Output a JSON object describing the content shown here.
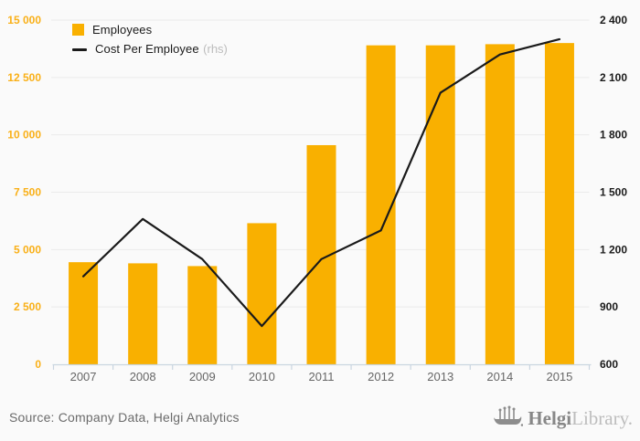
{
  "chart_data": {
    "type": "bar+line",
    "categories": [
      "2007",
      "2008",
      "2009",
      "2010",
      "2011",
      "2012",
      "2013",
      "2014",
      "2015"
    ],
    "series": [
      {
        "name": "Employees",
        "type": "bar",
        "axis": "left",
        "values": [
          4450,
          4400,
          4280,
          6150,
          9550,
          13900,
          13900,
          13950,
          14000
        ]
      },
      {
        "name": "Cost Per Employee",
        "type": "line",
        "axis": "right",
        "values": [
          1060,
          1360,
          1150,
          800,
          1150,
          1300,
          2020,
          2220,
          2300
        ]
      }
    ],
    "left_axis": {
      "min": 0,
      "max": 15000,
      "step": 2500,
      "tick_labels": [
        "0",
        "2 500",
        "5 000",
        "7 500",
        "10 000",
        "12 500",
        "15 000"
      ]
    },
    "right_axis": {
      "min": 600,
      "max": 2400,
      "step": 300,
      "tick_labels": [
        "600",
        "900",
        "1 200",
        "1 500",
        "1 800",
        "2 100",
        "2 400"
      ]
    },
    "title": "",
    "grid": "horizontal",
    "legend_position": "top-left",
    "colors": {
      "bar": "#f9b000",
      "line": "#1a1a1a",
      "left_tick_label": "#f9b018",
      "right_tick_label": "#1a1a1a",
      "x_tick_label": "#666666",
      "gridline": "#ebebeb",
      "axis_line": "#c9d5e0"
    }
  },
  "legend": {
    "employees_label": "Employees",
    "cost_label": "Cost Per Employee",
    "cost_suffix": "(rhs)"
  },
  "footer": {
    "source": "Source: Company Data, Helgi Analytics",
    "brand_primary": "Helgi",
    "brand_secondary": "Library."
  }
}
